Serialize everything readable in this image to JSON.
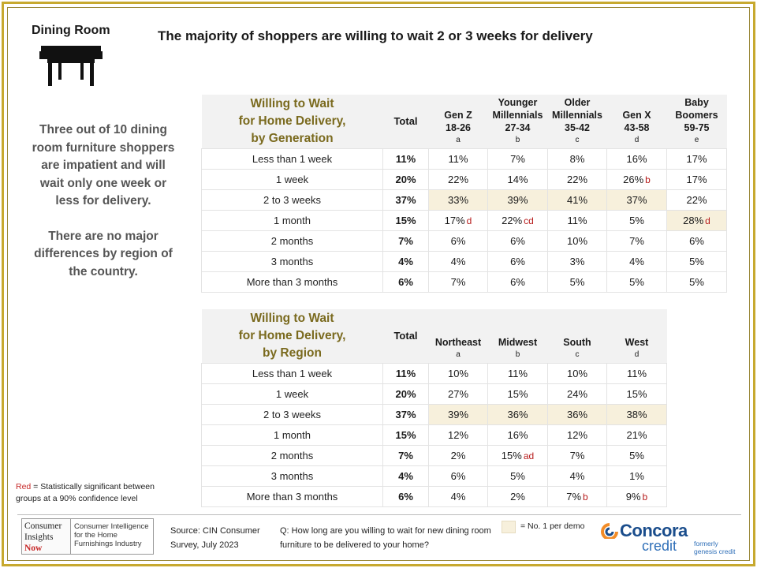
{
  "section": {
    "label": "Dining Room"
  },
  "headline": "The majority of shoppers are willing to wait 2 or 3 weeks for delivery",
  "side": {
    "para1": "Three out of 10 dining room furniture shoppers are impatient and will wait only one week or less for delivery.",
    "para2": "There are no major differences by region of the country."
  },
  "generation_table": {
    "title": [
      "Willing to Wait",
      "for Home Delivery,",
      "by Generation"
    ],
    "total_label": "Total",
    "columns": [
      {
        "lines": [
          "Gen Z",
          "18-26"
        ],
        "letter": "a"
      },
      {
        "lines": [
          "Younger",
          "Millennials",
          "27-34"
        ],
        "letter": "b"
      },
      {
        "lines": [
          "Older",
          "Millennials",
          "35-42"
        ],
        "letter": "c"
      },
      {
        "lines": [
          "Gen X",
          "43-58"
        ],
        "letter": "d"
      },
      {
        "lines": [
          "Baby",
          "Boomers",
          "59-75"
        ],
        "letter": "e"
      }
    ],
    "rows": [
      {
        "label": "Less than 1 week",
        "total": "11%",
        "cells": [
          {
            "v": "11%"
          },
          {
            "v": "7%"
          },
          {
            "v": "8%"
          },
          {
            "v": "16%"
          },
          {
            "v": "17%"
          }
        ]
      },
      {
        "label": "1 week",
        "total": "20%",
        "cells": [
          {
            "v": "22%"
          },
          {
            "v": "14%"
          },
          {
            "v": "22%"
          },
          {
            "v": "26%",
            "sig": "b"
          },
          {
            "v": "17%"
          }
        ]
      },
      {
        "label": "2 to 3 weeks",
        "total": "37%",
        "cells": [
          {
            "v": "33%",
            "hl": true
          },
          {
            "v": "39%",
            "hl": true
          },
          {
            "v": "41%",
            "hl": true
          },
          {
            "v": "37%",
            "hl": true
          },
          {
            "v": "22%"
          }
        ]
      },
      {
        "label": "1 month",
        "total": "15%",
        "cells": [
          {
            "v": "17%",
            "sig": "d"
          },
          {
            "v": "22%",
            "sig": "cd"
          },
          {
            "v": "11%"
          },
          {
            "v": "5%"
          },
          {
            "v": "28%",
            "sig": "d",
            "hl": true
          }
        ]
      },
      {
        "label": "2 months",
        "total": "7%",
        "cells": [
          {
            "v": "6%"
          },
          {
            "v": "6%"
          },
          {
            "v": "10%"
          },
          {
            "v": "7%"
          },
          {
            "v": "6%"
          }
        ]
      },
      {
        "label": "3 months",
        "total": "4%",
        "cells": [
          {
            "v": "4%"
          },
          {
            "v": "6%"
          },
          {
            "v": "3%"
          },
          {
            "v": "4%"
          },
          {
            "v": "5%"
          }
        ]
      },
      {
        "label": "More than 3 months",
        "total": "6%",
        "cells": [
          {
            "v": "7%"
          },
          {
            "v": "6%"
          },
          {
            "v": "5%"
          },
          {
            "v": "5%"
          },
          {
            "v": "5%"
          }
        ]
      }
    ]
  },
  "region_table": {
    "title": [
      "Willing to Wait",
      "for Home Delivery,",
      "by Region"
    ],
    "total_label": "Total",
    "columns": [
      {
        "lines": [
          "Northeast"
        ],
        "letter": "a"
      },
      {
        "lines": [
          "Midwest"
        ],
        "letter": "b"
      },
      {
        "lines": [
          "South"
        ],
        "letter": "c"
      },
      {
        "lines": [
          "West"
        ],
        "letter": "d"
      }
    ],
    "rows": [
      {
        "label": "Less than 1 week",
        "total": "11%",
        "cells": [
          {
            "v": "10%"
          },
          {
            "v": "11%"
          },
          {
            "v": "10%"
          },
          {
            "v": "11%"
          }
        ]
      },
      {
        "label": "1 week",
        "total": "20%",
        "cells": [
          {
            "v": "27%"
          },
          {
            "v": "15%"
          },
          {
            "v": "24%"
          },
          {
            "v": "15%"
          }
        ]
      },
      {
        "label": "2 to 3 weeks",
        "total": "37%",
        "cells": [
          {
            "v": "39%",
            "hl": true
          },
          {
            "v": "36%",
            "hl": true
          },
          {
            "v": "36%",
            "hl": true
          },
          {
            "v": "38%",
            "hl": true
          }
        ]
      },
      {
        "label": "1 month",
        "total": "15%",
        "cells": [
          {
            "v": "12%"
          },
          {
            "v": "16%"
          },
          {
            "v": "12%"
          },
          {
            "v": "21%"
          }
        ]
      },
      {
        "label": "2 months",
        "total": "7%",
        "cells": [
          {
            "v": "2%"
          },
          {
            "v": "15%",
            "sig": "ad"
          },
          {
            "v": "7%"
          },
          {
            "v": "5%"
          }
        ]
      },
      {
        "label": "3 months",
        "total": "4%",
        "cells": [
          {
            "v": "6%"
          },
          {
            "v": "5%"
          },
          {
            "v": "4%"
          },
          {
            "v": "1%"
          }
        ]
      },
      {
        "label": "More than 3 months",
        "total": "6%",
        "cells": [
          {
            "v": "4%"
          },
          {
            "v": "2%"
          },
          {
            "v": "7%",
            "sig": "b"
          },
          {
            "v": "9%",
            "sig": "b"
          }
        ]
      }
    ]
  },
  "legend": {
    "red_word": "Red",
    "red_text": " = Statistically significant between groups at a 90% confidence level",
    "no1": "= No. 1 per demo",
    "highlight_color": "#f7f0dc",
    "sig_color": "#b71c1c",
    "accent_color": "#c7a92f"
  },
  "footer": {
    "cin_lines": [
      "Consumer",
      "Insights",
      "Now"
    ],
    "cin_tagline": [
      "Consumer Intelligence",
      "for the Home",
      "Furnishings Industry"
    ],
    "source": [
      "Source: CIN Consumer",
      "Survey, July 2023"
    ],
    "question": "Q: How long are you willing to wait for new dining room furniture to be delivered to your home?",
    "brand_word": "Concora",
    "brand_credit": "credit",
    "formerly": [
      "formerly",
      "genesis credit"
    ]
  }
}
